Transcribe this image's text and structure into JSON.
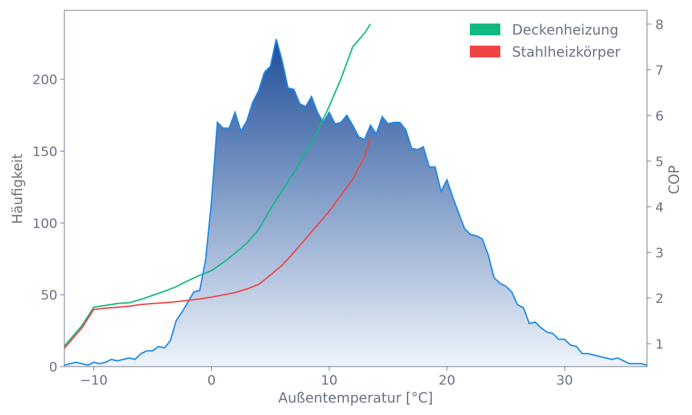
{
  "chart_data": {
    "type": "area+line",
    "title": "",
    "xlabel": "Außentemperatur [°C]",
    "ylabel_left": "Häufigkeit",
    "ylabel_right": "COP",
    "xlim": [
      -12.5,
      37
    ],
    "ylim_left": [
      0,
      248
    ],
    "ylim_right": [
      0.5,
      8.3
    ],
    "x_ticks": [
      -10,
      0,
      10,
      20,
      30
    ],
    "x_tick_labels": [
      "−10",
      "0",
      "10",
      "20",
      "30"
    ],
    "y_left_ticks": [
      0,
      50,
      100,
      150,
      200
    ],
    "y_left_tick_labels": [
      "0",
      "50",
      "100",
      "150",
      "200"
    ],
    "y_right_ticks": [
      1,
      2,
      3,
      4,
      5,
      6,
      7,
      8
    ],
    "y_right_tick_labels": [
      "1",
      "2",
      "3",
      "4",
      "5",
      "6",
      "7",
      "8"
    ],
    "grid": false,
    "legend_position": "top-right",
    "colors": {
      "frequency_line": "#1e88e5",
      "frequency_fill_top": "#1f4e99",
      "frequency_fill_bottom": "#eef4fb",
      "deckenheizung": "#10b981",
      "stahlheizkoerper": "#ef4444",
      "axis": "#6b7280"
    },
    "frequency": {
      "x": [
        -12.5,
        -12,
        -11.5,
        -11,
        -10.5,
        -10,
        -9.5,
        -9,
        -8.5,
        -8,
        -7.5,
        -7,
        -6.5,
        -6,
        -5.5,
        -5,
        -4.5,
        -4,
        -3.5,
        -3,
        -2.5,
        -2,
        -1.5,
        -1,
        -0.5,
        0,
        0.5,
        1,
        1.5,
        2,
        2.5,
        3,
        3.5,
        4,
        4.5,
        5,
        5.5,
        6,
        6.5,
        7,
        7.5,
        8,
        8.5,
        9,
        9.5,
        10,
        10.5,
        11,
        11.5,
        12,
        12.5,
        13,
        13.5,
        14,
        14.5,
        15,
        15.5,
        16,
        16.5,
        17,
        17.5,
        18,
        18.5,
        19,
        19.5,
        20,
        20.5,
        21,
        21.5,
        22,
        22.5,
        23,
        23.5,
        24,
        24.5,
        25,
        25.5,
        26,
        26.5,
        27,
        27.5,
        28,
        28.5,
        29,
        29.5,
        30,
        30.5,
        31,
        31.5,
        32,
        32.5,
        33,
        33.5,
        34,
        34.5,
        35,
        35.5,
        36,
        36.5,
        37
      ],
      "y": [
        1,
        2,
        3,
        2,
        1,
        3,
        2,
        3,
        5,
        4,
        5,
        6,
        5,
        9,
        11,
        11,
        14,
        13,
        18,
        32,
        38,
        45,
        52,
        53,
        74,
        115,
        170,
        166,
        166,
        177,
        164,
        171,
        184,
        192,
        205,
        209,
        228,
        213,
        194,
        193,
        183,
        181,
        188,
        177,
        170,
        177,
        169,
        170,
        175,
        168,
        160,
        158,
        168,
        162,
        174,
        169,
        170,
        170,
        165,
        152,
        151,
        153,
        139,
        139,
        122,
        130,
        118,
        107,
        96,
        92,
        91,
        89,
        78,
        62,
        58,
        56,
        52,
        43,
        41,
        30,
        31,
        27,
        24,
        23,
        19,
        19,
        15,
        14,
        9,
        9,
        8,
        7,
        6,
        5,
        6,
        4,
        2,
        2,
        2,
        1
      ]
    },
    "series": [
      {
        "name": "Deckenheizung",
        "axis": "right",
        "x": [
          -12.5,
          -11,
          -10,
          -9,
          -8,
          -7,
          -6,
          -5,
          -4,
          -3,
          -2,
          -1,
          0,
          1,
          2,
          3,
          4,
          5,
          6,
          7,
          8,
          9,
          10,
          11,
          12,
          13,
          13.5
        ],
        "values": [
          0.95,
          1.4,
          1.8,
          1.84,
          1.88,
          1.9,
          1.97,
          2.06,
          2.15,
          2.25,
          2.38,
          2.5,
          2.6,
          2.78,
          2.98,
          3.2,
          3.5,
          3.95,
          4.35,
          4.75,
          5.2,
          5.65,
          6.2,
          6.8,
          7.5,
          7.8,
          8.0
        ]
      },
      {
        "name": "Stahlheizkörper",
        "axis": "right",
        "x": [
          -12.5,
          -11,
          -10,
          -9,
          -8,
          -7,
          -6,
          -5,
          -4,
          -3,
          -2,
          -1,
          0,
          1,
          2,
          3,
          4,
          5,
          6,
          7,
          8,
          9,
          10,
          11,
          12,
          13,
          13.5
        ],
        "values": [
          0.9,
          1.35,
          1.75,
          1.78,
          1.8,
          1.82,
          1.86,
          1.88,
          1.9,
          1.92,
          1.95,
          1.98,
          2.02,
          2.07,
          2.12,
          2.2,
          2.3,
          2.5,
          2.72,
          3.0,
          3.3,
          3.6,
          3.9,
          4.25,
          4.6,
          5.1,
          5.5
        ]
      }
    ]
  }
}
